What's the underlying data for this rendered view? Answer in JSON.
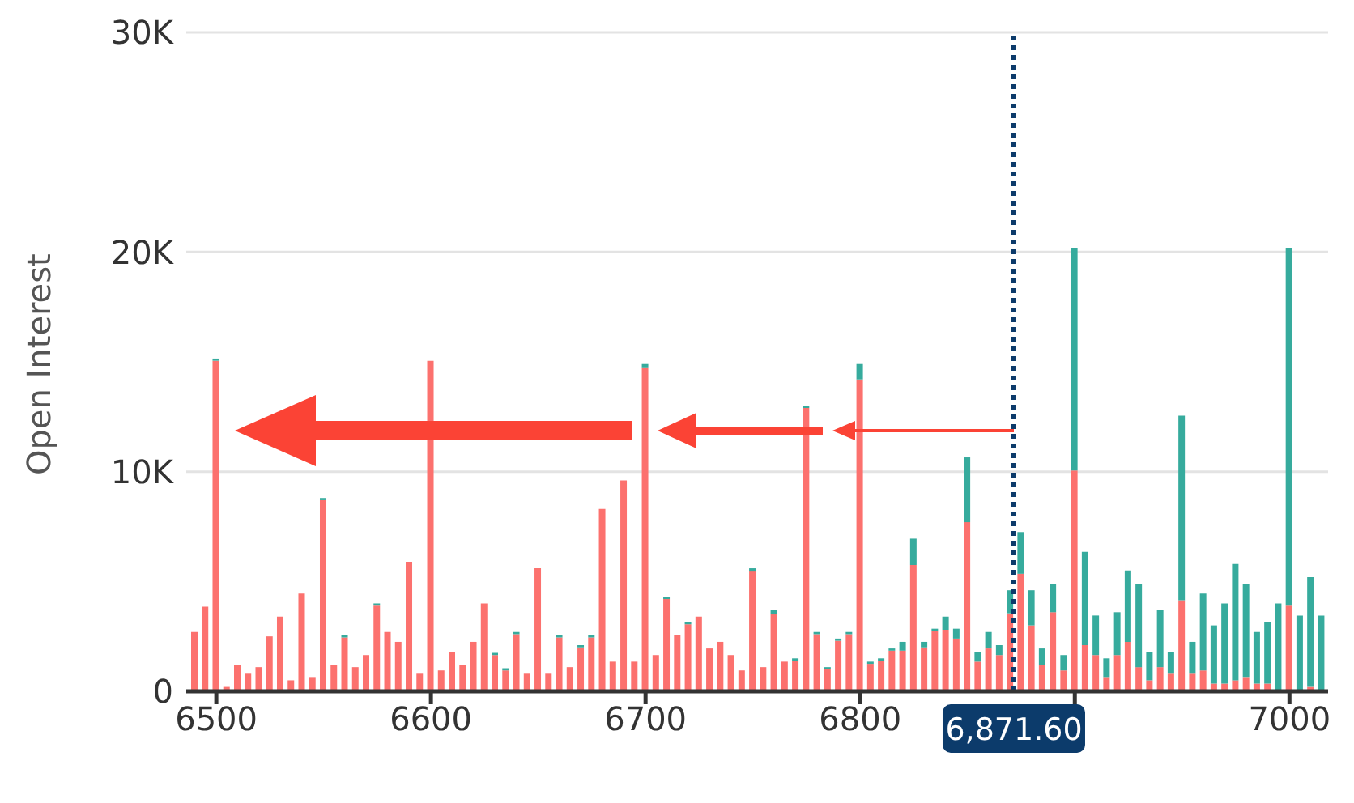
{
  "chart_data": {
    "type": "bar",
    "ylabel": "Open Interest",
    "stacked": true,
    "grid": "y",
    "x": [
      6490,
      6495,
      6500,
      6505,
      6510,
      6515,
      6520,
      6525,
      6530,
      6535,
      6540,
      6545,
      6550,
      6555,
      6560,
      6565,
      6570,
      6575,
      6580,
      6585,
      6590,
      6595,
      6600,
      6605,
      6610,
      6615,
      6620,
      6625,
      6630,
      6635,
      6640,
      6645,
      6650,
      6655,
      6660,
      6665,
      6670,
      6675,
      6680,
      6685,
      6690,
      6695,
      6700,
      6705,
      6710,
      6715,
      6720,
      6725,
      6730,
      6735,
      6740,
      6745,
      6750,
      6755,
      6760,
      6765,
      6770,
      6775,
      6780,
      6785,
      6790,
      6795,
      6800,
      6805,
      6810,
      6815,
      6820,
      6825,
      6830,
      6835,
      6840,
      6845,
      6850,
      6855,
      6860,
      6865,
      6870,
      6875,
      6880,
      6885,
      6890,
      6895,
      6900,
      6905,
      6910,
      6915,
      6920,
      6925,
      6930,
      6935,
      6940,
      6945,
      6950,
      6955,
      6960,
      6965,
      6970,
      6975,
      6980,
      6985,
      6990,
      6995,
      7000,
      7005,
      7010,
      7015
    ],
    "series": [
      {
        "color": "#fc716e",
        "values": [
          2700,
          3850,
          15050,
          200,
          1200,
          800,
          1100,
          2500,
          3400,
          500,
          4450,
          650,
          8700,
          1200,
          2450,
          1100,
          1650,
          3900,
          2700,
          2250,
          5900,
          800,
          15050,
          950,
          1800,
          1200,
          2250,
          4000,
          1650,
          950,
          2600,
          800,
          5600,
          800,
          2450,
          1100,
          2000,
          2450,
          8300,
          1350,
          9600,
          1350,
          14750,
          1650,
          4200,
          2550,
          3050,
          3400,
          1950,
          2250,
          1650,
          950,
          5450,
          1100,
          3500,
          1350,
          1400,
          12900,
          2600,
          1000,
          2300,
          2600,
          14200,
          1250,
          1400,
          1850,
          1850,
          5750,
          2000,
          2750,
          2800,
          2400,
          7700,
          1350,
          1950,
          1650,
          3550,
          5350,
          3000,
          1200,
          3600,
          950,
          10050,
          2100,
          1650,
          650,
          1650,
          2250,
          1100,
          500,
          1100,
          800,
          4150,
          800,
          950,
          350,
          350,
          500,
          650,
          350,
          350,
          0,
          3900,
          0,
          200,
          0
        ]
      },
      {
        "color": "#36ab9d",
        "values": [
          0,
          0,
          100,
          0,
          0,
          0,
          0,
          0,
          0,
          0,
          0,
          0,
          100,
          0,
          100,
          0,
          0,
          100,
          0,
          0,
          0,
          0,
          0,
          0,
          0,
          0,
          0,
          0,
          100,
          100,
          100,
          0,
          0,
          0,
          100,
          0,
          100,
          100,
          0,
          0,
          0,
          0,
          150,
          0,
          100,
          0,
          100,
          0,
          0,
          0,
          0,
          0,
          150,
          0,
          200,
          0,
          100,
          100,
          100,
          100,
          100,
          100,
          700,
          100,
          100,
          100,
          400,
          1200,
          250,
          100,
          600,
          450,
          2950,
          450,
          750,
          450,
          1050,
          1900,
          1600,
          750,
          1300,
          700,
          10150,
          4250,
          1800,
          850,
          1950,
          3250,
          3800,
          1300,
          2600,
          1000,
          8400,
          1450,
          3500,
          2650,
          3650,
          5300,
          4250,
          2350,
          2800,
          4000,
          16300,
          3450,
          5000,
          3450
        ]
      }
    ],
    "xlim": [
      6486,
      7018
    ],
    "xticks": [
      6500,
      6600,
      6700,
      6800,
      {
        "value": 6900,
        "label": null
      },
      7000
    ],
    "ylim": [
      0,
      30000
    ],
    "yticks": [
      {
        "value": 0,
        "label": "0"
      },
      {
        "value": 10000,
        "label": "10K"
      },
      {
        "value": 20000,
        "label": "20K"
      },
      {
        "value": 30000,
        "label": "30K"
      }
    ],
    "ref_lines": [
      {
        "axis": "x",
        "value": 6871.6,
        "label": "6,871.60",
        "color": "#0c3b6b",
        "line_style": "dotted"
      }
    ]
  }
}
